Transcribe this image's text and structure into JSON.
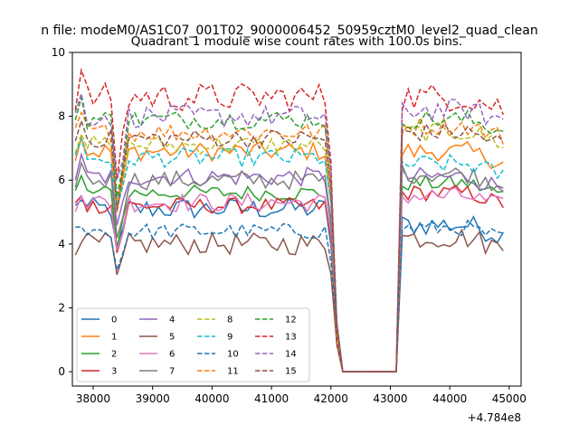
{
  "figure": {
    "suptitle": "n file: modeM0/AS1C07_001T02_9000006452_50959cztM0_level2_quad_clean"
  },
  "chart_data": {
    "type": "line",
    "title": "Quadrant 1 module wise count rates with 100.0s bins.",
    "xlabel": "",
    "ylabel": "",
    "x_offset_label": "+4.784e8",
    "xlim": [
      37650,
      45200
    ],
    "ylim": [
      -0.45,
      10.0
    ],
    "xticks": [
      38000,
      39000,
      40000,
      41000,
      42000,
      43000,
      44000,
      45000
    ],
    "yticks": [
      0,
      2,
      4,
      6,
      8,
      10
    ],
    "grid": false,
    "legend": {
      "location": "lower-left",
      "columns": 4
    },
    "gap": {
      "x": [
        42150,
        43050
      ],
      "value": 0
    },
    "x_start": 37700,
    "x_step": 100,
    "x_end": 44900,
    "series": [
      {
        "name": "0",
        "color": "#1f77b4",
        "dash": "solid",
        "level1": 5.1,
        "level2": 4.6,
        "amp": 0.35
      },
      {
        "name": "1",
        "color": "#ff7f0e",
        "dash": "solid",
        "level1": 6.9,
        "level2": 6.9,
        "amp": 0.3
      },
      {
        "name": "2",
        "color": "#2ca02c",
        "dash": "solid",
        "level1": 5.6,
        "level2": 5.9,
        "amp": 0.25
      },
      {
        "name": "3",
        "color": "#d62728",
        "dash": "solid",
        "level1": 5.2,
        "level2": 5.6,
        "amp": 0.25
      },
      {
        "name": "4",
        "color": "#9467bd",
        "dash": "solid",
        "level1": 6.1,
        "level2": 6.1,
        "amp": 0.3
      },
      {
        "name": "5",
        "color": "#8c564b",
        "dash": "solid",
        "level1": 4.0,
        "level2": 4.2,
        "amp": 0.35
      },
      {
        "name": "6",
        "color": "#e377c2",
        "dash": "solid",
        "level1": 5.3,
        "level2": 5.5,
        "amp": 0.3
      },
      {
        "name": "7",
        "color": "#7f7f7f",
        "dash": "solid",
        "level1": 6.0,
        "level2": 6.2,
        "amp": 0.3
      },
      {
        "name": "8",
        "color": "#bcbd22",
        "dash": "dashed",
        "level1": 7.1,
        "level2": 7.5,
        "amp": 0.3
      },
      {
        "name": "9",
        "color": "#17becf",
        "dash": "dashed",
        "level1": 6.7,
        "level2": 6.5,
        "amp": 0.3
      },
      {
        "name": "10",
        "color": "#1f77b4",
        "dash": "dashed",
        "level1": 4.4,
        "level2": 4.5,
        "amp": 0.25
      },
      {
        "name": "11",
        "color": "#ff7f0e",
        "dash": "dashed",
        "level1": 7.5,
        "level2": 7.7,
        "amp": 0.3
      },
      {
        "name": "12",
        "color": "#2ca02c",
        "dash": "dashed",
        "level1": 7.9,
        "level2": 7.9,
        "amp": 0.3
      },
      {
        "name": "13",
        "color": "#d62728",
        "dash": "dashed",
        "level1": 8.6,
        "level2": 8.6,
        "amp": 0.45
      },
      {
        "name": "14",
        "color": "#9467bd",
        "dash": "dashed",
        "level1": 8.0,
        "level2": 8.2,
        "amp": 0.35
      },
      {
        "name": "15",
        "color": "#8c564b",
        "dash": "dashed",
        "level1": 7.3,
        "level2": 7.5,
        "amp": 0.3
      }
    ]
  }
}
